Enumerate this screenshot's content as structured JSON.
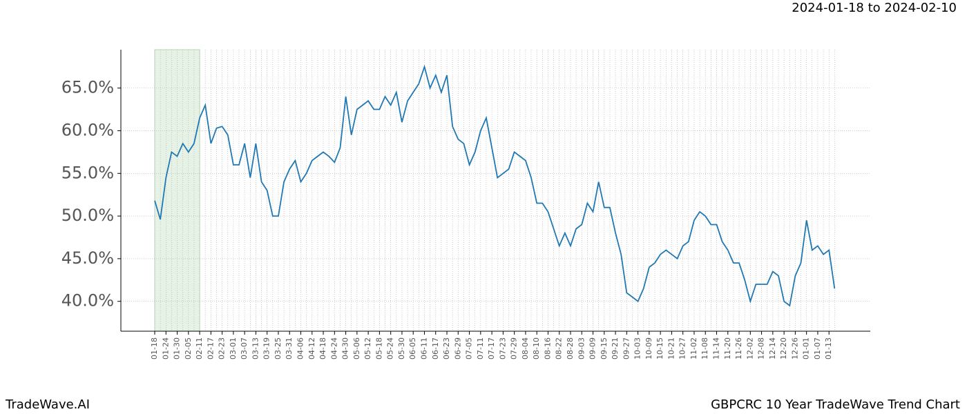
{
  "chart_data": {
    "type": "line",
    "title": "2024-01-18 to 2024-02-10",
    "brand": "TradeWave.AI",
    "chart_name": "GBPCRC 10 Year TradeWave Trend Chart",
    "categories": [
      "01-18",
      null,
      "01-24",
      null,
      "01-30",
      null,
      "02-05",
      null,
      "02-11",
      null,
      "02-17",
      null,
      "02-23",
      null,
      "03-01",
      null,
      "03-07",
      null,
      "03-13",
      null,
      "03-19",
      null,
      "03-25",
      null,
      "03-31",
      null,
      "04-06",
      null,
      "04-12",
      null,
      "04-18",
      null,
      "04-24",
      null,
      "04-30",
      null,
      "05-06",
      null,
      "05-12",
      null,
      "05-18",
      null,
      "05-24",
      null,
      "05-30",
      null,
      "06-05",
      null,
      "06-11",
      null,
      "06-17",
      null,
      "06-23",
      null,
      "06-29",
      null,
      "07-05",
      null,
      "07-11",
      null,
      "07-17",
      null,
      "07-23",
      null,
      "07-29",
      null,
      "08-04",
      null,
      "08-10",
      null,
      "08-16",
      null,
      "08-22",
      null,
      "08-28",
      null,
      "09-03",
      null,
      "09-09",
      null,
      "09-15",
      null,
      "09-21",
      null,
      "09-27",
      null,
      "10-03",
      null,
      "10-09",
      null,
      "10-15",
      null,
      "10-21",
      null,
      "10-27",
      null,
      "11-02",
      null,
      "11-08",
      null,
      "11-14",
      null,
      "11-20",
      null,
      "11-26",
      null,
      "12-02",
      null,
      "12-08",
      null,
      "12-14",
      null,
      "12-20",
      null,
      "12-26",
      null,
      "01-01",
      null,
      "01-07",
      null,
      "01-13",
      null
    ],
    "values": [
      51.8,
      49.6,
      54.5,
      57.5,
      57,
      58.5,
      57.5,
      58.5,
      61.5,
      63,
      58.5,
      60.3,
      60.5,
      59.5,
      56,
      56,
      58.5,
      54.5,
      58.5,
      54,
      53,
      50,
      50,
      54,
      55.5,
      56.5,
      54,
      55,
      56.5,
      57,
      57.5,
      57,
      56.3,
      58,
      64,
      59.5,
      62.5,
      63,
      63.5,
      62.5,
      62.5,
      64,
      63,
      64.5,
      61,
      63.5,
      64.5,
      65.5,
      67.5,
      65,
      66.5,
      64.5,
      66.5,
      60.5,
      59,
      58.5,
      56,
      57.5,
      60,
      61.5,
      58,
      54.5,
      55,
      55.5,
      57.5,
      57,
      56.5,
      54.5,
      51.5,
      51.5,
      50.5,
      48.5,
      46.5,
      48,
      46.5,
      48.5,
      49,
      51.5,
      50.5,
      54,
      51,
      51,
      48,
      45.5,
      41,
      40.5,
      40,
      41.5,
      44,
      44.5,
      45.5,
      46,
      45.5,
      45,
      46.5,
      47,
      49.5,
      50.5,
      50,
      49,
      49,
      47,
      46,
      44.5,
      44.5,
      42.5,
      40,
      42,
      42,
      42,
      43.5,
      43,
      40,
      39.5,
      43,
      44.5,
      49.5,
      46,
      46.5,
      45.5,
      46,
      41.5
    ],
    "color": "#1f77b4",
    "shade": [
      0,
      8
    ],
    "shade_color": "#e5f2e5",
    "ylim": [
      36.5,
      69.5
    ],
    "yticks": [
      {
        "value": 40,
        "label": "40.0%"
      },
      {
        "value": 45,
        "label": "45.0%"
      },
      {
        "value": 50,
        "label": "50.0%"
      },
      {
        "value": 55,
        "label": "55.0%"
      },
      {
        "value": 60,
        "label": "60.0%"
      },
      {
        "value": 65,
        "label": "65.0%"
      }
    ],
    "grid": true
  }
}
